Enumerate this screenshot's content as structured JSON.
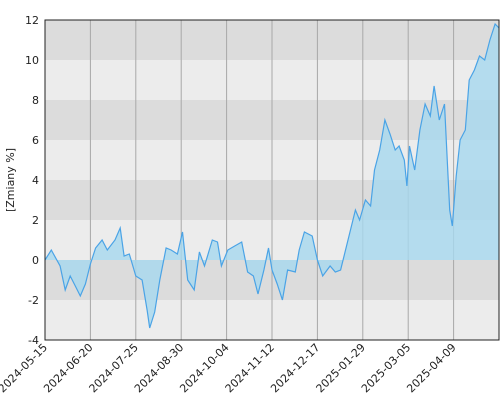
{
  "chart_data": {
    "type": "area",
    "y_label": "[Zmiany %]",
    "x": [
      "2024-05-15",
      "2024-05-20",
      "2024-05-27",
      "2024-05-31",
      "2024-06-04",
      "2024-06-08",
      "2024-06-12",
      "2024-06-16",
      "2024-06-20",
      "2024-06-24",
      "2024-06-29",
      "2024-07-03",
      "2024-07-09",
      "2024-07-13",
      "2024-07-16",
      "2024-07-20",
      "2024-07-25",
      "2024-07-30",
      "2024-08-03",
      "2024-08-05",
      "2024-08-09",
      "2024-08-13",
      "2024-08-18",
      "2024-08-22",
      "2024-08-27",
      "2024-08-31",
      "2024-09-04",
      "2024-09-09",
      "2024-09-13",
      "2024-09-17",
      "2024-09-23",
      "2024-09-27",
      "2024-09-30",
      "2024-10-05",
      "2024-10-11",
      "2024-10-17",
      "2024-10-22",
      "2024-10-27",
      "2024-10-31",
      "2024-11-05",
      "2024-11-09",
      "2024-11-12",
      "2024-11-16",
      "2024-11-20",
      "2024-11-24",
      "2024-11-30",
      "2024-12-03",
      "2024-12-07",
      "2024-12-13",
      "2024-12-17",
      "2024-12-22",
      "2024-12-29",
      "2025-01-03",
      "2025-01-08",
      "2025-01-15",
      "2025-01-22",
      "2025-01-26",
      "2025-01-31",
      "2025-02-04",
      "2025-02-07",
      "2025-02-11",
      "2025-02-15",
      "2025-02-19",
      "2025-02-23",
      "2025-02-26",
      "2025-03-02",
      "2025-03-04",
      "2025-03-06",
      "2025-03-10",
      "2025-03-14",
      "2025-03-18",
      "2025-03-22",
      "2025-03-25",
      "2025-03-29",
      "2025-04-02",
      "2025-04-06",
      "2025-04-08",
      "2025-04-11",
      "2025-04-14",
      "2025-04-18",
      "2025-04-21",
      "2025-04-25",
      "2025-04-29",
      "2025-05-03",
      "2025-05-07",
      "2025-05-11",
      "2025-05-14"
    ],
    "values": [
      0.0,
      0.5,
      -0.3,
      -1.5,
      -0.8,
      -1.3,
      -1.8,
      -1.2,
      -0.2,
      0.6,
      1.0,
      0.5,
      1.0,
      1.6,
      0.2,
      0.3,
      -0.8,
      -1.0,
      -2.5,
      -3.4,
      -2.6,
      -1.0,
      0.6,
      0.5,
      0.3,
      1.4,
      -1.0,
      -1.5,
      0.4,
      -0.3,
      1.0,
      0.9,
      -0.3,
      0.5,
      0.7,
      0.9,
      -0.6,
      -0.8,
      -1.7,
      -0.5,
      0.6,
      -0.5,
      -1.2,
      -2.0,
      -0.5,
      -0.6,
      0.5,
      1.4,
      1.2,
      0.0,
      -0.8,
      -0.3,
      -0.6,
      -0.5,
      1.0,
      2.5,
      2.0,
      3.0,
      2.7,
      4.5,
      5.5,
      7.0,
      6.3,
      5.5,
      5.7,
      5.0,
      3.7,
      5.7,
      4.5,
      6.5,
      7.8,
      7.2,
      8.7,
      7.0,
      7.8,
      2.5,
      1.7,
      4.2,
      6.0,
      6.5,
      9.0,
      9.5,
      10.2,
      10.0,
      11.0,
      11.8,
      11.6
    ],
    "color": "#4aa3e6",
    "fill_color": "#a6d8ef",
    "band_colors": [
      "#dcdcdc",
      "#ececec"
    ],
    "xlim": [
      "2024-05-15",
      "2025-05-14"
    ],
    "xticks": [
      "2024-05-15",
      "2024-06-20",
      "2024-07-25",
      "2024-08-30",
      "2024-10-04",
      "2024-11-12",
      "2024-12-17",
      "2025-01-29",
      "2025-03-05",
      "2025-04-09"
    ],
    "ylim": [
      -4,
      12
    ],
    "yticks": [
      -4,
      -2,
      0,
      2,
      4,
      6,
      8,
      10,
      12
    ],
    "grid": true
  }
}
